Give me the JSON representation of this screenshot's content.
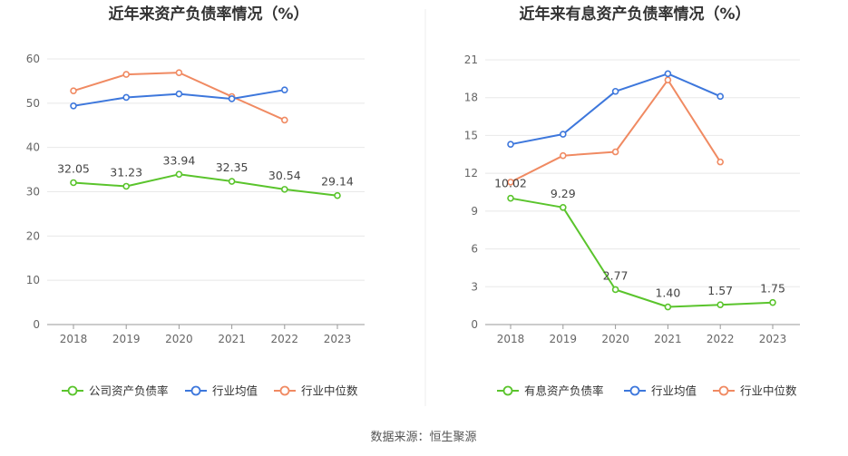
{
  "source_label": "数据来源：恒生聚源",
  "chart_data": [
    {
      "type": "line",
      "title": "近年来资产负债率情况（%）",
      "xlabel": "",
      "ylabel": "",
      "categories": [
        "2018",
        "2019",
        "2020",
        "2021",
        "2022",
        "2023"
      ],
      "ylim": [
        0,
        60
      ],
      "yticks": [
        0,
        10,
        20,
        30,
        40,
        50,
        60
      ],
      "grid": true,
      "legend_position": "bottom",
      "series": [
        {
          "name": "公司资产负债率",
          "color": "#5ac42c",
          "values": [
            32.05,
            31.23,
            33.94,
            32.35,
            30.54,
            29.14
          ],
          "labels": [
            "32.05",
            "31.23",
            "33.94",
            "32.35",
            "30.54",
            "29.14"
          ]
        },
        {
          "name": "行业均值",
          "color": "#3d77dc",
          "values": [
            49.4,
            51.3,
            52.1,
            51.0,
            53.0,
            null
          ]
        },
        {
          "name": "行业中位数",
          "color": "#f08a62",
          "values": [
            52.8,
            56.5,
            56.9,
            51.5,
            46.2,
            null
          ]
        }
      ]
    },
    {
      "type": "line",
      "title": "近年来有息资产负债率情况（%）",
      "xlabel": "",
      "ylabel": "",
      "categories": [
        "2018",
        "2019",
        "2020",
        "2021",
        "2022",
        "2023"
      ],
      "ylim": [
        0,
        21
      ],
      "yticks": [
        0,
        3,
        6,
        9,
        12,
        15,
        18,
        21
      ],
      "grid": true,
      "legend_position": "bottom",
      "series": [
        {
          "name": "有息资产负债率",
          "color": "#5ac42c",
          "values": [
            10.02,
            9.29,
            2.77,
            1.4,
            1.57,
            1.75
          ],
          "labels": [
            "10.02",
            "9.29",
            "2.77",
            "1.40",
            "1.57",
            "1.75"
          ]
        },
        {
          "name": "行业均值",
          "color": "#3d77dc",
          "values": [
            14.3,
            15.1,
            18.5,
            19.9,
            18.1,
            null
          ]
        },
        {
          "name": "行业中位数",
          "color": "#f08a62",
          "values": [
            11.3,
            13.4,
            13.7,
            19.4,
            12.9,
            null
          ]
        }
      ]
    }
  ]
}
